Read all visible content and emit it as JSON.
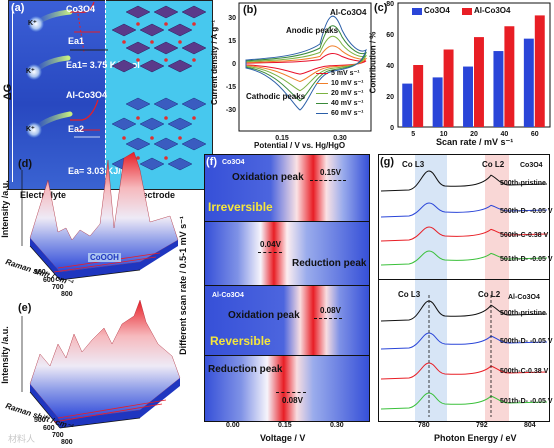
{
  "panel_a": {
    "label": "(a)",
    "y_axis": "ΔG",
    "top_material": "Co3O4",
    "ea1_label": "Ea1",
    "ea1_value": "Ea1= 3.75 KJ/mol",
    "mid_material": "Al-Co3O4",
    "ea2_label": "Ea2",
    "ea2_value": "Ea= 3.03 KJ/mol",
    "ion": "K⁺",
    "left_caption": "Electrolyte",
    "right_caption": "Electrode"
  },
  "panel_b": {
    "label": "(b)",
    "title": "Al-Co3O4",
    "anodic": "Anodic peaks",
    "cathodic": "Cathodic peaks",
    "ylabel": "Current density / A g⁻¹",
    "xlabel": "Potential / V vs. Hg/HgO",
    "yticks": [
      "30",
      "15",
      "0",
      "-15",
      "-30"
    ],
    "xticks": [
      "0.15",
      "0.30"
    ],
    "legend": [
      "5 mV s⁻¹",
      "10 mV s⁻¹",
      "20 mV s⁻¹",
      "40 mV s⁻¹",
      "60 mV s⁻¹"
    ],
    "colors": [
      "#e8102a",
      "#f07f2a",
      "#7cb342",
      "#3a8a3a",
      "#2b5fa8"
    ]
  },
  "panel_c": {
    "label": "(c)",
    "legend": [
      "Co3O4",
      "Al-Co3O4"
    ],
    "ylabel": "Contribution / %",
    "xlabel": "Scan rate / mV s⁻¹",
    "yticks": [
      "80",
      "60",
      "40",
      "20",
      "0"
    ]
  },
  "chart_data": {
    "type": "bar",
    "categories": [
      "5",
      "10",
      "20",
      "40",
      "60"
    ],
    "series": [
      {
        "name": "Co3O4",
        "values": [
          28,
          32,
          39,
          49,
          57
        ]
      },
      {
        "name": "Al-Co3O4",
        "values": [
          40,
          50,
          58,
          65,
          72
        ]
      }
    ],
    "ylim": [
      0,
      80
    ],
    "colors": [
      "#2a45d8",
      "#e81e25"
    ]
  },
  "panel_d": {
    "label": "(d)",
    "zlabel": "Intensity /a.u.",
    "xlabel": "Raman shift / cm⁻¹",
    "ticks": [
      "500",
      "600",
      "700",
      "800"
    ],
    "annotation": "CoOOH"
  },
  "panel_e": {
    "label": "(e)",
    "zlabel": "Intensity /a.u.",
    "xlabel": "Raman shift / cm⁻¹",
    "ticks": [
      "500",
      "600",
      "700",
      "800"
    ]
  },
  "panel_f": {
    "label": "(f)",
    "top_material": "Co3O4",
    "ox1": "Oxidation peak",
    "ox1_width": "0.15V",
    "irreversible": "Irreversible",
    "red1_width": "0.04V",
    "red1": "Reduction peak",
    "mid_material": "Al-Co3O4",
    "ox2": "Oxidation peak",
    "ox2_width": "0.08V",
    "reversible": "Reversible",
    "red2": "Reduction peak",
    "red2_width": "0.08V",
    "ylabel": "Different scan rate / 0.5-1 mV s⁻¹",
    "xlabel": "Voltage / V",
    "xticks": [
      "0.00",
      "0.15",
      "0.30"
    ]
  },
  "panel_g": {
    "label": "(g)",
    "top_material": "Co3O4",
    "bottom_material": "Al-Co3O4",
    "col3": "Co L3",
    "col2": "Co L2",
    "top_labels": [
      "500th-pristine",
      "500th-D- -0.05 V",
      "500th-C-0.38 V",
      "501th-D- -0.05 V"
    ],
    "bottom_labels": [
      "500th-pristine",
      "500th-D- -0.05 V",
      "500th-C-0.38 V",
      "501th-D- -0.05 V"
    ],
    "xlabel": "Photon Energy / eV",
    "xticks": [
      "780",
      "792",
      "804"
    ]
  },
  "watermark": "材料人"
}
